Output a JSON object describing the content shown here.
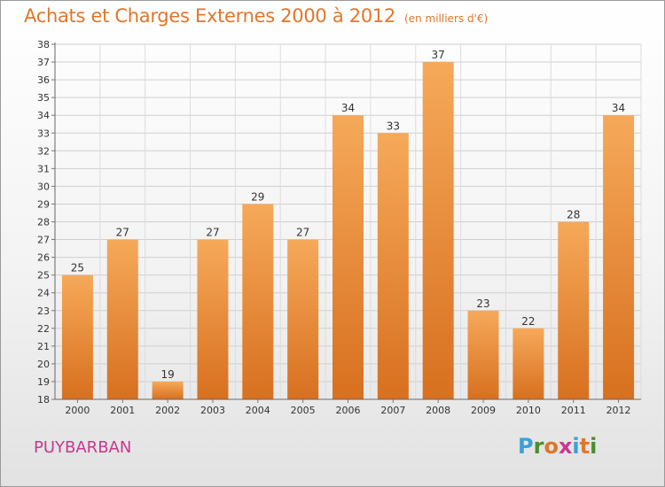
{
  "header": {
    "title": "Achats et Charges Externes 2000 à 2012",
    "unit": "(en milliers d'€)"
  },
  "footer": {
    "place": "PUYBARBAN",
    "logo": {
      "text": "Proxiti",
      "letter_colors": [
        "#3aa0d8",
        "#4b8f2a",
        "#e0762b",
        "#c8388e",
        "#3aa0d8",
        "#e0762b",
        "#4b8f2a"
      ]
    }
  },
  "colors": {
    "accent": "#e0762b",
    "place": "#c8388e",
    "bar_top": "#f6a95a",
    "bar_bottom": "#d7701f"
  },
  "chart_data": {
    "type": "bar",
    "title": "Achats et Charges Externes 2000 à 2012",
    "subtitle": "(en milliers d'€)",
    "categories": [
      "2000",
      "2001",
      "2002",
      "2003",
      "2004",
      "2005",
      "2006",
      "2007",
      "2008",
      "2009",
      "2010",
      "2011",
      "2012"
    ],
    "values": [
      25,
      27,
      19,
      27,
      29,
      27,
      34,
      33,
      37,
      23,
      22,
      28,
      34
    ],
    "ylim": [
      18,
      38
    ],
    "ytick_step": 1,
    "grid": true,
    "legend": "none",
    "data_labels": true
  }
}
